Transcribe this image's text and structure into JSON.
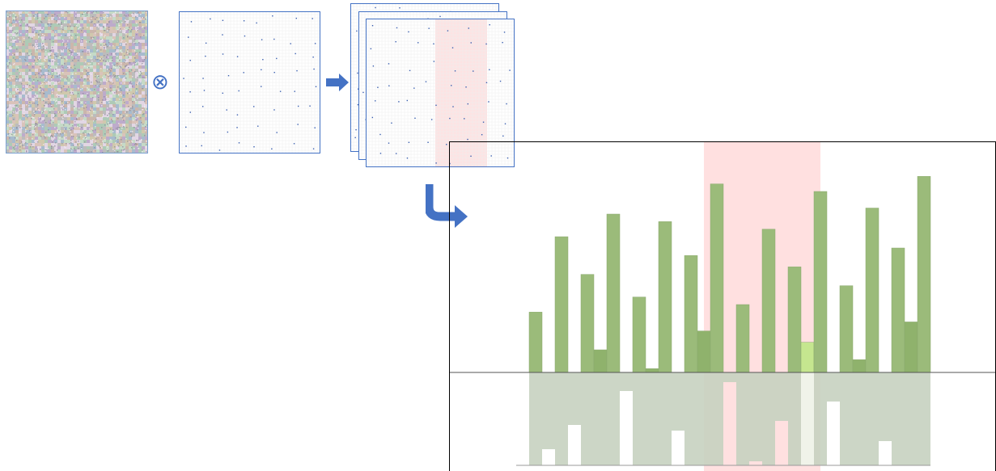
{
  "diagram": {
    "operator_symbol": "⊗",
    "noise_image": {
      "icon": "noise-texture-icon"
    },
    "sparse_pattern": {
      "icon": "sparse-dot-grid-icon"
    },
    "arrow_right": {
      "icon": "arrow-right-icon"
    },
    "arrow_down_turn": {
      "icon": "curved-arrow-down-right-icon"
    },
    "stacked_pages": {
      "count": 3,
      "icon": "stacked-pages-icon"
    }
  },
  "colors": {
    "accent_blue": "#4472c4",
    "bar_green": "#9bbb7a",
    "bar_green_dark": "#8fb26c",
    "bar_green_highlight": "#c5e68f",
    "bar_gray_green": "#c7d2c0",
    "highlight_band": "#ffe0e0"
  },
  "chart_data": {
    "type": "bar",
    "baseline": 0,
    "ylim": [
      -11.5,
      28.5
    ],
    "band_range": [
      13.5,
      22.5
    ],
    "highlight_index": 21,
    "upper_values": [
      8,
      0,
      18,
      0,
      13,
      3,
      21,
      0,
      10,
      0.5,
      20,
      0,
      15.5,
      5.5,
      25,
      0,
      9,
      0,
      19,
      0,
      14,
      4,
      24,
      0,
      11.5,
      1.7,
      21.8,
      0,
      16.5,
      6.7,
      26
    ],
    "lower_values": [
      11.5,
      9.5,
      11.5,
      6.5,
      11.5,
      11.5,
      11.5,
      2.3,
      11.5,
      11.5,
      11.5,
      7.2,
      11.5,
      11.5,
      11.5,
      1.2,
      11.5,
      11,
      11.5,
      6,
      11.5,
      11.5,
      11.5,
      3.6,
      11.5,
      11.5,
      11.5,
      8.5,
      11.5,
      11.5,
      11.5
    ]
  }
}
